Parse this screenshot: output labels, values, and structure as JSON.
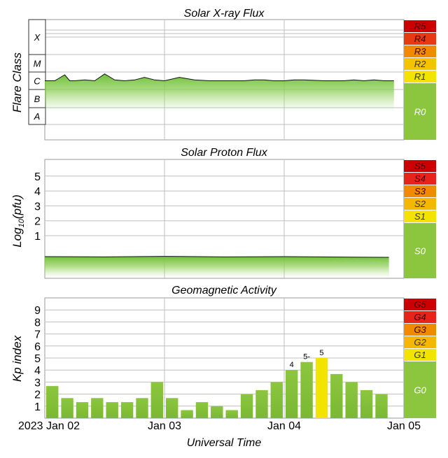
{
  "x_axis": {
    "title": "Universal Time",
    "ticks": [
      "2023 Jan 02",
      "Jan 03",
      "Jan 04",
      "Jan 05"
    ]
  },
  "xray": {
    "title": "Solar X-ray Flux",
    "ylabel": "Flare Class",
    "classes": [
      "A",
      "B",
      "C",
      "M",
      "X"
    ],
    "scale": [
      {
        "label": "R5",
        "color": "#cc0000"
      },
      {
        "label": "R4",
        "color": "#e83a12"
      },
      {
        "label": "R3",
        "color": "#f08a00"
      },
      {
        "label": "R2",
        "color": "#f5c400"
      },
      {
        "label": "R1",
        "color": "#f2e400"
      },
      {
        "label": "R0",
        "color": "#8cc63f"
      }
    ]
  },
  "proton": {
    "title": "Solar Proton Flux",
    "ylabel_main": "Log",
    "ylabel_sub": "10",
    "ylabel_tail": "(pfu)",
    "ticks": [
      "1",
      "2",
      "3",
      "4",
      "5"
    ],
    "scale": [
      {
        "label": "S5",
        "color": "#cc0000"
      },
      {
        "label": "S4",
        "color": "#e8231c"
      },
      {
        "label": "S3",
        "color": "#f08a00"
      },
      {
        "label": "S2",
        "color": "#f5b800"
      },
      {
        "label": "S1",
        "color": "#f2e400"
      },
      {
        "label": "S0",
        "color": "#8cc63f"
      }
    ]
  },
  "geomag": {
    "title": "Geomagnetic Activity",
    "ylabel": "Kp index",
    "ticks": [
      "1",
      "2",
      "3",
      "4",
      "5",
      "6",
      "7",
      "8",
      "9"
    ],
    "scale": [
      {
        "label": "G5",
        "color": "#cc0000"
      },
      {
        "label": "G4",
        "color": "#e8231c"
      },
      {
        "label": "G3",
        "color": "#f08a00"
      },
      {
        "label": "G2",
        "color": "#f5b800"
      },
      {
        "label": "G1",
        "color": "#f2e400"
      },
      {
        "label": "G0",
        "color": "#8cc63f"
      }
    ]
  },
  "colors": {
    "green": "#7ec242",
    "yellow": "#f2e400",
    "grid": "#bfbfbf"
  },
  "chart_data": [
    {
      "type": "area",
      "title": "Solar X-ray Flux",
      "ylabel": "Flare Class",
      "y_scale": "log (flare class A..X)",
      "x_range": [
        "2023-01-02 00:00",
        "2023-01-05 00:00"
      ],
      "grid": true,
      "x_hours": [
        0,
        2,
        4,
        5,
        6,
        8,
        10,
        12,
        14,
        16,
        18,
        20,
        22,
        24,
        27,
        30,
        33,
        36,
        40,
        42,
        44,
        46,
        48,
        50,
        52,
        56,
        60,
        62,
        64,
        66,
        68,
        70,
        72,
        71
      ],
      "class_position": [
        2.55,
        2.55,
        2.9,
        2.55,
        2.55,
        2.6,
        2.55,
        2.95,
        2.6,
        2.55,
        2.6,
        2.75,
        2.6,
        2.55,
        2.75,
        2.6,
        2.55,
        2.55,
        2.55,
        2.6,
        2.6,
        2.55,
        2.55,
        2.6,
        2.6,
        2.55,
        2.55,
        2.6,
        2.55,
        2.6,
        2.55,
        2.55,
        2.6,
        2.6
      ]
    },
    {
      "type": "area",
      "title": "Solar Proton Flux",
      "ylabel": "Log10(pfu)",
      "x_range": [
        "2023-01-02 00:00",
        "2023-01-05 00:00"
      ],
      "ylim": [
        -1.2,
        6
      ],
      "grid": true,
      "x_hours": [
        0,
        12,
        24,
        36,
        48,
        60,
        69
      ],
      "values": [
        -0.45,
        -0.47,
        -0.43,
        -0.47,
        -0.45,
        -0.48,
        -0.5
      ]
    },
    {
      "type": "bar",
      "title": "Geomagnetic Activity",
      "ylabel": "Kp index",
      "x_range": [
        "2023-01-02 00:00",
        "2023-01-05 00:00"
      ],
      "ylim": [
        0,
        10
      ],
      "grid": true,
      "bar_start_hours": [
        0,
        3,
        6,
        9,
        12,
        15,
        18,
        21,
        24,
        27,
        30,
        33,
        36,
        39,
        42,
        45,
        48,
        51,
        54,
        57,
        60,
        63,
        66,
        69
      ],
      "values": [
        2.67,
        1.67,
        1.33,
        1.67,
        1.33,
        1.33,
        1.67,
        3.0,
        1.67,
        0.67,
        1.33,
        1.0,
        0.67,
        2.0,
        2.33,
        3.0,
        4.0,
        4.67,
        5.0,
        3.67,
        3.0,
        2.33,
        2.0,
        null
      ],
      "labels": [
        "",
        "",
        "",
        "",
        "",
        "",
        "",
        "",
        "",
        "",
        "",
        "",
        "",
        "",
        "",
        "",
        "4",
        "5-",
        "5",
        "",
        "",
        "",
        "",
        ""
      ],
      "highlight_index": 18
    }
  ]
}
